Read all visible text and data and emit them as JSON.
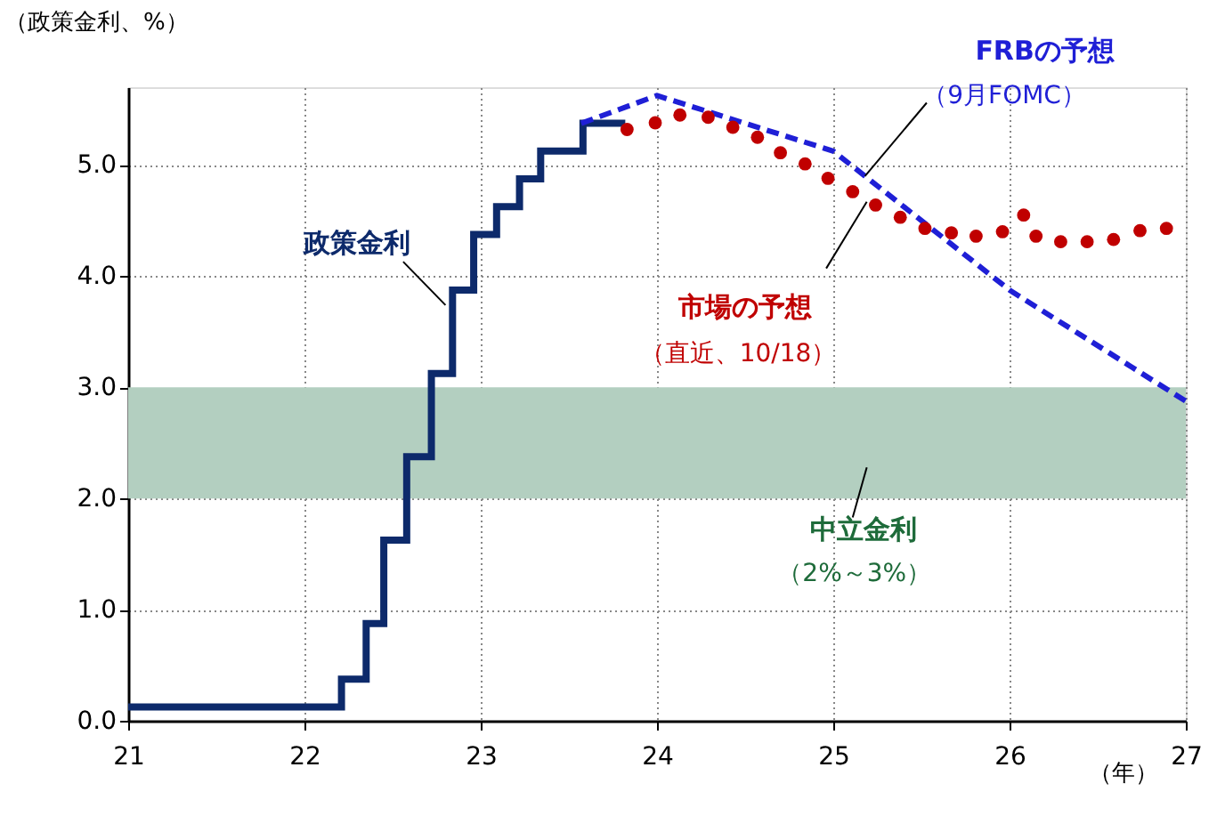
{
  "chart_data": {
    "type": "line",
    "ylabel": "（政策金利、%）",
    "xlabel": "（年）",
    "xlim": [
      21,
      27
    ],
    "xticks": [
      21,
      22,
      23,
      24,
      25,
      26,
      27
    ],
    "ylim": [
      0,
      5.7
    ],
    "yticks": [
      {
        "value": 0,
        "label": "0.0"
      },
      {
        "value": 1,
        "label": "1.0"
      },
      {
        "value": 2,
        "label": "2.0"
      },
      {
        "value": 3,
        "label": "3.0"
      },
      {
        "value": 4,
        "label": "4.0"
      },
      {
        "value": 5,
        "label": "5.0"
      }
    ],
    "grid": true,
    "legend": false,
    "series": [
      {
        "name": "政策金利",
        "type": "step",
        "color": "#0d2a6b",
        "line_style": "solid",
        "x": [
          21,
          22.21,
          22.35,
          22.45,
          22.58,
          22.72,
          22.84,
          22.96,
          23.09,
          23.22,
          23.34,
          23.58,
          23.82
        ],
        "values": [
          0.125,
          0.375,
          0.875,
          1.625,
          2.375,
          3.125,
          3.875,
          4.375,
          4.625,
          4.875,
          5.125,
          5.375,
          5.375
        ]
      },
      {
        "name": "FRBの予想",
        "color": "#1f1fd6",
        "line_style": "dashed",
        "x": [
          23.57,
          24.0,
          25.0,
          26.0,
          27.0
        ],
        "values": [
          5.375,
          5.625,
          5.125,
          3.875,
          2.875
        ]
      },
      {
        "name": "市場の予想",
        "type": "scatter",
        "marker": "circle",
        "color": "#c00000",
        "x": [
          23.83,
          23.99,
          24.13,
          24.29,
          24.43,
          24.57,
          24.7,
          24.84,
          24.97,
          25.11,
          25.24,
          25.38,
          25.52,
          25.67,
          25.81,
          25.96,
          26.08,
          26.15,
          26.29,
          26.44,
          26.59,
          26.74,
          26.89
        ],
        "values": [
          5.32,
          5.38,
          5.45,
          5.43,
          5.34,
          5.25,
          5.11,
          5.01,
          4.88,
          4.76,
          4.64,
          4.53,
          4.43,
          4.39,
          4.36,
          4.4,
          4.55,
          4.36,
          4.31,
          4.31,
          4.33,
          4.41,
          4.43
        ]
      }
    ],
    "bands": [
      {
        "axis": "y",
        "from": 2,
        "to": 3,
        "label": "中立金利",
        "color": "#b3cfc0"
      }
    ],
    "annotations": [
      {
        "text": "（9月FOMC）",
        "x": 25.18,
        "y": 4.9
      },
      "（直近、10/18）",
      "（2%～3%）"
    ]
  }
}
